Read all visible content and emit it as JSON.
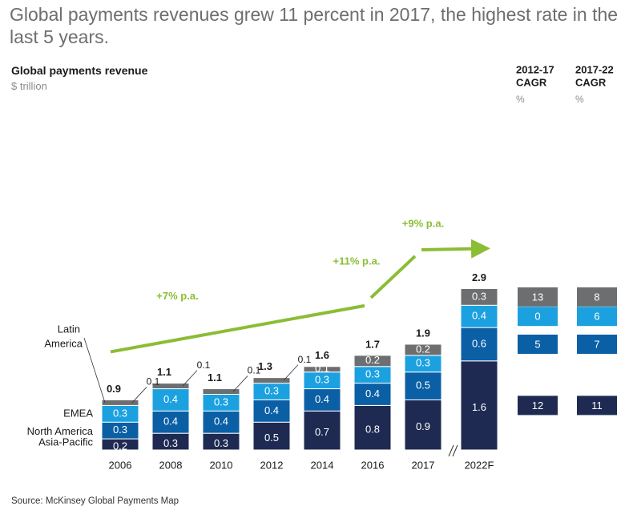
{
  "headline": "Global payments revenues grew 11 percent in 2017, the highest rate in the last 5 years.",
  "source": "Source: McKinsey Global Payments Map",
  "colors": {
    "asia_pacific": "#1f2a52",
    "north_america": "#0b5fa5",
    "emea": "#1ca1e0",
    "latin_america": "#6d6e70",
    "growth_arrow": "#8bbd35"
  },
  "chart_data": {
    "type": "bar",
    "stacked": true,
    "title": "Global payments revenue",
    "ylabel": "$ trillion",
    "categories": [
      "2006",
      "2008",
      "2010",
      "2012",
      "2014",
      "2016",
      "2017",
      "2022F"
    ],
    "series": [
      {
        "name": "Asia-Pacific",
        "values": [
          0.2,
          0.3,
          0.3,
          0.5,
          0.7,
          0.8,
          0.9,
          1.6
        ]
      },
      {
        "name": "North America",
        "values": [
          0.3,
          0.4,
          0.4,
          0.4,
          0.4,
          0.4,
          0.5,
          0.6
        ]
      },
      {
        "name": "EMEA",
        "values": [
          0.3,
          0.4,
          0.3,
          0.3,
          0.3,
          0.3,
          0.3,
          0.4
        ]
      },
      {
        "name": "Latin America",
        "values": [
          0.1,
          0.1,
          0.1,
          0.1,
          0.1,
          0.2,
          0.2,
          0.3
        ]
      }
    ],
    "totals": [
      "0.9",
      "1.1",
      "1.1",
      "1.3",
      "1.6",
      "1.7",
      "1.9",
      "2.9"
    ],
    "growth_annotations": [
      {
        "label": "+7% p.a.",
        "from": "2006",
        "to": "2016"
      },
      {
        "label": "+11% p.a.",
        "from": "2016",
        "to": "2017"
      },
      {
        "label": "+9% p.a.",
        "from": "2017",
        "to": "2022F"
      }
    ],
    "cagr_table": {
      "columns": [
        {
          "title_line1": "2012-17",
          "title_line2": "CAGR",
          "unit": "%"
        },
        {
          "title_line1": "2017-22",
          "title_line2": "CAGR",
          "unit": "%"
        }
      ],
      "rows": [
        {
          "series": "Latin America",
          "values": [
            "13",
            "8"
          ]
        },
        {
          "series": "EMEA",
          "values": [
            "0",
            "6"
          ]
        },
        {
          "series": "North America",
          "values": [
            "5",
            "7"
          ]
        },
        {
          "series": "Asia-Pacific",
          "values": [
            "12",
            "11"
          ]
        }
      ]
    },
    "series_labels": {
      "latin_line1": "Latin",
      "latin_line2": "America",
      "emea": "EMEA",
      "north_america": "North America",
      "asia_pacific": "Asia-Pacific"
    }
  }
}
